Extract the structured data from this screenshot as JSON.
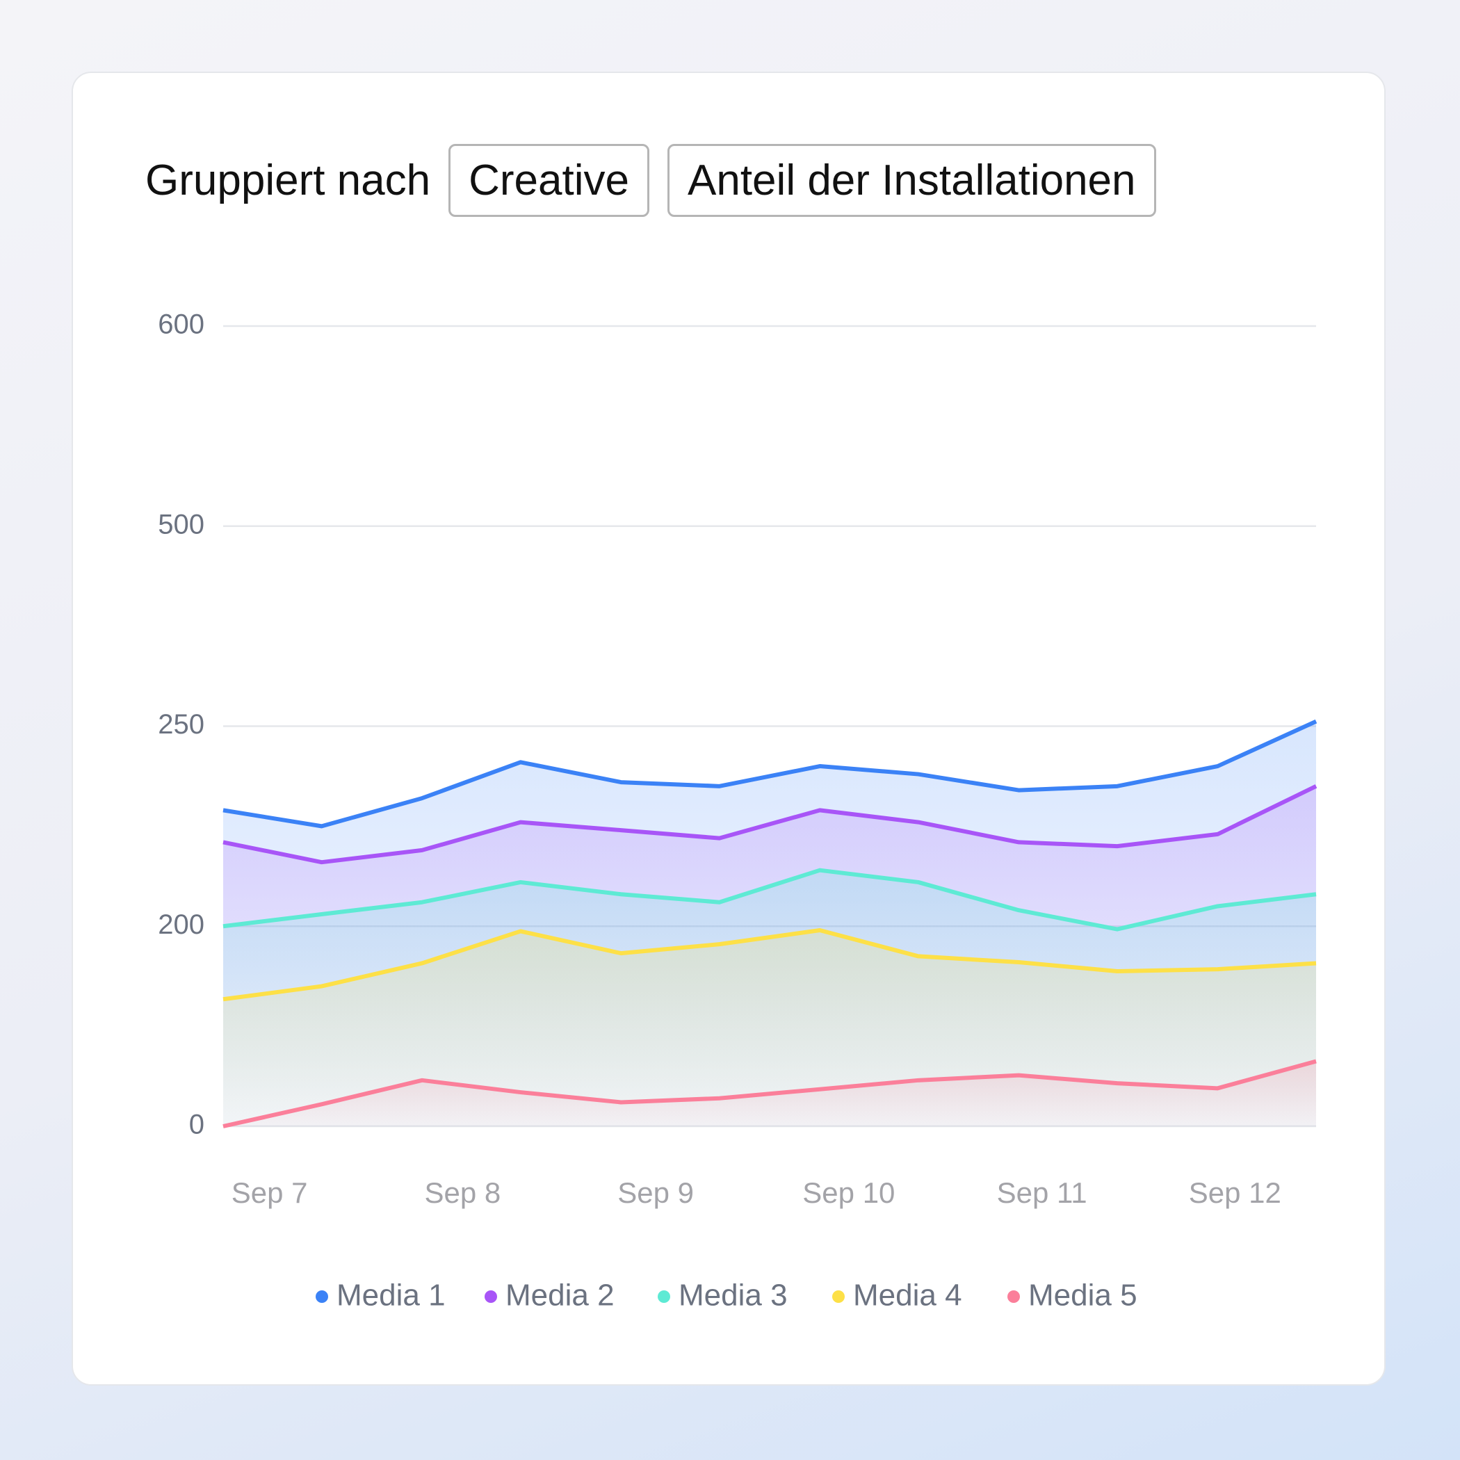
{
  "controls": {
    "label": "Gruppiert nach",
    "group": "Creative",
    "metric": "Anteil der Installationen"
  },
  "chart_data": {
    "type": "area",
    "x": [
      6.76,
      7.27,
      7.79,
      8.3,
      8.82,
      9.33,
      9.85,
      10.36,
      10.88,
      11.39,
      11.91,
      12.42
    ],
    "xlim": [
      6.76,
      12.42
    ],
    "xticks": [
      {
        "value": 7,
        "label": "Sep 7"
      },
      {
        "value": 8,
        "label": "Sep 8"
      },
      {
        "value": 9,
        "label": "Sep 9"
      },
      {
        "value": 10,
        "label": "Sep 10"
      },
      {
        "value": 11,
        "label": "Sep 11"
      },
      {
        "value": 12,
        "label": "Sep 12"
      }
    ],
    "ylim": [
      0,
      600
    ],
    "yticks": [
      0,
      200,
      250,
      500,
      600
    ],
    "grid": true,
    "legend": "bottom",
    "series": [
      {
        "name": "Media 1",
        "color": "#3b82f6",
        "values": [
          229,
          225,
          232,
          241,
          236,
          235,
          240,
          238,
          234,
          235,
          240,
          256
        ]
      },
      {
        "name": "Media 2",
        "color": "#a855f7",
        "values": [
          221,
          216,
          219,
          226,
          224,
          222,
          229,
          226,
          221,
          220,
          223,
          235
        ]
      },
      {
        "name": "Media 3",
        "color": "#5eead4",
        "values": [
          200,
          203,
          206,
          211,
          208,
          206,
          214,
          211,
          204,
          197,
          205,
          208
        ]
      },
      {
        "name": "Media 4",
        "color": "#fde047",
        "values": [
          127,
          140,
          163,
          195,
          173,
          182,
          196,
          170,
          164,
          155,
          157,
          163
        ]
      },
      {
        "name": "Media 5",
        "color": "#fb7f9a",
        "values": [
          0,
          22,
          46,
          34,
          24,
          28,
          37,
          46,
          51,
          43,
          38,
          65
        ]
      }
    ]
  }
}
